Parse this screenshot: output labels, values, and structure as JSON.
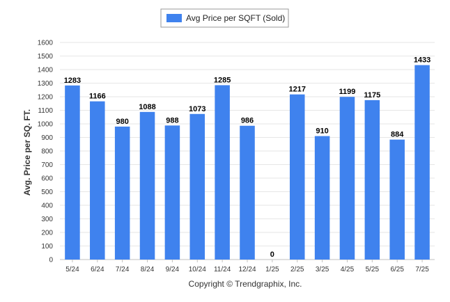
{
  "colors": {
    "bar": "#3f82ee",
    "grid": "#e6e6e6",
    "axis": "#c0c0c0"
  },
  "legend": {
    "label": "Avg Price per SQFT (Sold)"
  },
  "footer": {
    "text": "Copyright © Trendgraphix, Inc."
  },
  "chart_data": {
    "type": "bar",
    "categories": [
      "5/24",
      "6/24",
      "7/24",
      "8/24",
      "9/24",
      "10/24",
      "11/24",
      "12/24",
      "1/25",
      "2/25",
      "3/25",
      "4/25",
      "5/25",
      "6/25",
      "7/25"
    ],
    "series": [
      {
        "name": "Avg Price per SQFT (Sold)",
        "values": [
          1283,
          1166,
          980,
          1088,
          988,
          1073,
          1285,
          986,
          0,
          1217,
          910,
          1199,
          1175,
          884,
          1433
        ]
      }
    ],
    "ylabel": "Avg. Price per SQ. FT.",
    "xlabel": "",
    "ylim": [
      0,
      1600
    ],
    "yticks": [
      0,
      100,
      200,
      300,
      400,
      500,
      600,
      700,
      800,
      900,
      1000,
      1100,
      1200,
      1300,
      1400,
      1500,
      1600
    ],
    "grid": true,
    "legend_position": "top-center"
  }
}
